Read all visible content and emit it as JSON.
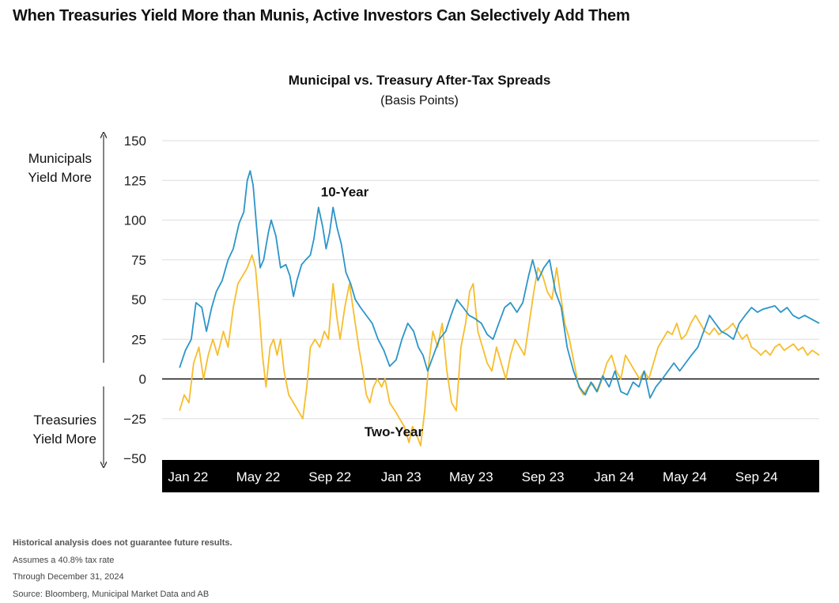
{
  "headline": "When Treasuries Yield More than Munis, Active Investors Can Selectively Add Them",
  "side_labels": {
    "top": "Municipals Yield More",
    "bottom": "Treasuries Yield More"
  },
  "notes": [
    "Historical analysis does not guarantee future results.",
    "Assumes a 40.8% tax rate",
    "Through December 31, 2024",
    "Source: Bloomberg, Municipal Market Data and AB"
  ],
  "colors": {
    "ten_year": "#2b95c9",
    "two_year": "#f7bd2c",
    "axis_band": "#000000",
    "grid": "#dddddd"
  },
  "chart_data": {
    "type": "line",
    "title": "Municipal vs. Treasury After-Tax Spreads",
    "subtitle": "(Basis Points)",
    "x_range": [
      "2021-12",
      "2024-12"
    ],
    "x_ticks": [
      "Jan 22",
      "May 22",
      "Sep 22",
      "Jan 23",
      "May 23",
      "Sep 23",
      "Jan 24",
      "May 24",
      "Sep 24"
    ],
    "y_ticks": [
      "150",
      "125",
      "100",
      "75",
      "50",
      "25",
      "0",
      "−25",
      "−50"
    ],
    "ylim": [
      -50,
      150
    ],
    "grid": true,
    "series": [
      {
        "name": "10-Year",
        "color": "#2b95c9",
        "points": [
          [
            "2021-12-31",
            7
          ],
          [
            "2022-01-10",
            18
          ],
          [
            "2022-01-20",
            25
          ],
          [
            "2022-01-28",
            48
          ],
          [
            "2022-02-07",
            45
          ],
          [
            "2022-02-15",
            30
          ],
          [
            "2022-02-24",
            45
          ],
          [
            "2022-03-04",
            55
          ],
          [
            "2022-03-14",
            62
          ],
          [
            "2022-03-24",
            75
          ],
          [
            "2022-04-02",
            82
          ],
          [
            "2022-04-12",
            98
          ],
          [
            "2022-04-20",
            105
          ],
          [
            "2022-04-26",
            125
          ],
          [
            "2022-05-01",
            131
          ],
          [
            "2022-05-06",
            122
          ],
          [
            "2022-05-12",
            95
          ],
          [
            "2022-05-18",
            70
          ],
          [
            "2022-05-24",
            75
          ],
          [
            "2022-06-01",
            92
          ],
          [
            "2022-06-06",
            100
          ],
          [
            "2022-06-14",
            90
          ],
          [
            "2022-06-22",
            70
          ],
          [
            "2022-07-01",
            72
          ],
          [
            "2022-07-08",
            65
          ],
          [
            "2022-07-14",
            52
          ],
          [
            "2022-07-20",
            62
          ],
          [
            "2022-07-28",
            72
          ],
          [
            "2022-08-04",
            75
          ],
          [
            "2022-08-12",
            78
          ],
          [
            "2022-08-18",
            88
          ],
          [
            "2022-08-26",
            108
          ],
          [
            "2022-09-02",
            96
          ],
          [
            "2022-09-08",
            82
          ],
          [
            "2022-09-14",
            92
          ],
          [
            "2022-09-20",
            108
          ],
          [
            "2022-09-27",
            95
          ],
          [
            "2022-10-04",
            85
          ],
          [
            "2022-10-12",
            67
          ],
          [
            "2022-10-20",
            60
          ],
          [
            "2022-10-28",
            50
          ],
          [
            "2022-11-06",
            45
          ],
          [
            "2022-11-16",
            40
          ],
          [
            "2022-11-26",
            35
          ],
          [
            "2022-12-06",
            25
          ],
          [
            "2022-12-16",
            18
          ],
          [
            "2022-12-26",
            8
          ],
          [
            "2023-01-06",
            12
          ],
          [
            "2023-01-16",
            25
          ],
          [
            "2023-01-26",
            35
          ],
          [
            "2023-02-05",
            30
          ],
          [
            "2023-02-13",
            20
          ],
          [
            "2023-02-21",
            15
          ],
          [
            "2023-03-01",
            5
          ],
          [
            "2023-03-11",
            15
          ],
          [
            "2023-03-21",
            25
          ],
          [
            "2023-04-01",
            30
          ],
          [
            "2023-04-10",
            40
          ],
          [
            "2023-04-20",
            50
          ],
          [
            "2023-05-01",
            45
          ],
          [
            "2023-05-11",
            40
          ],
          [
            "2023-05-21",
            38
          ],
          [
            "2023-06-01",
            35
          ],
          [
            "2023-06-11",
            28
          ],
          [
            "2023-06-21",
            25
          ],
          [
            "2023-07-01",
            35
          ],
          [
            "2023-07-11",
            45
          ],
          [
            "2023-07-21",
            48
          ],
          [
            "2023-08-01",
            42
          ],
          [
            "2023-08-11",
            48
          ],
          [
            "2023-08-21",
            65
          ],
          [
            "2023-08-28",
            75
          ],
          [
            "2023-09-06",
            62
          ],
          [
            "2023-09-16",
            70
          ],
          [
            "2023-09-26",
            75
          ],
          [
            "2023-10-06",
            55
          ],
          [
            "2023-10-16",
            45
          ],
          [
            "2023-10-26",
            20
          ],
          [
            "2023-11-06",
            5
          ],
          [
            "2023-11-16",
            -5
          ],
          [
            "2023-11-26",
            -10
          ],
          [
            "2023-12-06",
            -2
          ],
          [
            "2023-12-16",
            -8
          ],
          [
            "2023-12-26",
            2
          ],
          [
            "2024-01-06",
            -5
          ],
          [
            "2024-01-16",
            5
          ],
          [
            "2024-01-26",
            -8
          ],
          [
            "2024-02-06",
            -10
          ],
          [
            "2024-02-16",
            -2
          ],
          [
            "2024-02-26",
            -5
          ],
          [
            "2024-03-06",
            5
          ],
          [
            "2024-03-16",
            -12
          ],
          [
            "2024-03-26",
            -5
          ],
          [
            "2024-04-06",
            0
          ],
          [
            "2024-04-16",
            5
          ],
          [
            "2024-04-26",
            10
          ],
          [
            "2024-05-06",
            5
          ],
          [
            "2024-05-16",
            10
          ],
          [
            "2024-05-26",
            15
          ],
          [
            "2024-06-06",
            20
          ],
          [
            "2024-06-16",
            30
          ],
          [
            "2024-06-26",
            40
          ],
          [
            "2024-07-06",
            35
          ],
          [
            "2024-07-16",
            30
          ],
          [
            "2024-07-26",
            28
          ],
          [
            "2024-08-06",
            25
          ],
          [
            "2024-08-16",
            35
          ],
          [
            "2024-08-26",
            40
          ],
          [
            "2024-09-06",
            45
          ],
          [
            "2024-09-16",
            42
          ],
          [
            "2024-09-26",
            44
          ],
          [
            "2024-10-06",
            45
          ],
          [
            "2024-10-16",
            46
          ],
          [
            "2024-10-26",
            42
          ],
          [
            "2024-11-06",
            45
          ],
          [
            "2024-11-16",
            40
          ],
          [
            "2024-11-26",
            38
          ],
          [
            "2024-12-06",
            40
          ],
          [
            "2024-12-16",
            38
          ],
          [
            "2024-12-31",
            35
          ]
        ]
      },
      {
        "name": "Two-Year",
        "color": "#f7bd2c",
        "points": [
          [
            "2021-12-31",
            -20
          ],
          [
            "2022-01-08",
            -10
          ],
          [
            "2022-01-16",
            -15
          ],
          [
            "2022-01-24",
            10
          ],
          [
            "2022-02-02",
            20
          ],
          [
            "2022-02-10",
            0
          ],
          [
            "2022-02-18",
            15
          ],
          [
            "2022-02-26",
            25
          ],
          [
            "2022-03-06",
            15
          ],
          [
            "2022-03-16",
            30
          ],
          [
            "2022-03-24",
            20
          ],
          [
            "2022-04-02",
            45
          ],
          [
            "2022-04-10",
            60
          ],
          [
            "2022-04-18",
            65
          ],
          [
            "2022-04-26",
            70
          ],
          [
            "2022-05-04",
            78
          ],
          [
            "2022-05-10",
            70
          ],
          [
            "2022-05-16",
            45
          ],
          [
            "2022-05-22",
            15
          ],
          [
            "2022-05-28",
            -5
          ],
          [
            "2022-06-04",
            20
          ],
          [
            "2022-06-10",
            25
          ],
          [
            "2022-06-16",
            15
          ],
          [
            "2022-06-22",
            25
          ],
          [
            "2022-06-28",
            5
          ],
          [
            "2022-07-06",
            -10
          ],
          [
            "2022-07-14",
            -15
          ],
          [
            "2022-07-22",
            -20
          ],
          [
            "2022-07-30",
            -25
          ],
          [
            "2022-08-06",
            -5
          ],
          [
            "2022-08-12",
            20
          ],
          [
            "2022-08-20",
            25
          ],
          [
            "2022-08-28",
            20
          ],
          [
            "2022-09-05",
            30
          ],
          [
            "2022-09-12",
            25
          ],
          [
            "2022-09-20",
            60
          ],
          [
            "2022-09-26",
            40
          ],
          [
            "2022-10-02",
            25
          ],
          [
            "2022-10-10",
            45
          ],
          [
            "2022-10-18",
            60
          ],
          [
            "2022-10-26",
            40
          ],
          [
            "2022-11-03",
            20
          ],
          [
            "2022-11-10",
            5
          ],
          [
            "2022-11-16",
            -10
          ],
          [
            "2022-11-22",
            -15
          ],
          [
            "2022-11-28",
            -5
          ],
          [
            "2022-12-05",
            0
          ],
          [
            "2022-12-12",
            -5
          ],
          [
            "2022-12-18",
            0
          ],
          [
            "2022-12-26",
            -15
          ],
          [
            "2023-01-04",
            -20
          ],
          [
            "2023-01-12",
            -25
          ],
          [
            "2023-01-20",
            -30
          ],
          [
            "2023-01-28",
            -40
          ],
          [
            "2023-02-03",
            -30
          ],
          [
            "2023-02-10",
            -35
          ],
          [
            "2023-02-17",
            -42
          ],
          [
            "2023-02-24",
            -20
          ],
          [
            "2023-03-03",
            10
          ],
          [
            "2023-03-10",
            30
          ],
          [
            "2023-03-18",
            20
          ],
          [
            "2023-03-26",
            35
          ],
          [
            "2023-04-03",
            5
          ],
          [
            "2023-04-11",
            -15
          ],
          [
            "2023-04-19",
            -20
          ],
          [
            "2023-04-27",
            20
          ],
          [
            "2023-05-05",
            35
          ],
          [
            "2023-05-12",
            55
          ],
          [
            "2023-05-18",
            60
          ],
          [
            "2023-05-26",
            30
          ],
          [
            "2023-06-03",
            20
          ],
          [
            "2023-06-11",
            10
          ],
          [
            "2023-06-19",
            5
          ],
          [
            "2023-06-27",
            20
          ],
          [
            "2023-07-05",
            10
          ],
          [
            "2023-07-13",
            0
          ],
          [
            "2023-07-21",
            15
          ],
          [
            "2023-07-29",
            25
          ],
          [
            "2023-08-06",
            20
          ],
          [
            "2023-08-14",
            15
          ],
          [
            "2023-08-22",
            35
          ],
          [
            "2023-08-30",
            55
          ],
          [
            "2023-09-06",
            70
          ],
          [
            "2023-09-14",
            65
          ],
          [
            "2023-09-22",
            55
          ],
          [
            "2023-09-30",
            50
          ],
          [
            "2023-10-08",
            70
          ],
          [
            "2023-10-14",
            55
          ],
          [
            "2023-10-22",
            35
          ],
          [
            "2023-10-30",
            25
          ],
          [
            "2023-11-07",
            10
          ],
          [
            "2023-11-15",
            -5
          ],
          [
            "2023-11-23",
            -10
          ],
          [
            "2023-12-01",
            -5
          ],
          [
            "2023-12-09",
            -3
          ],
          [
            "2023-12-17",
            -8
          ],
          [
            "2023-12-25",
            0
          ],
          [
            "2024-01-02",
            10
          ],
          [
            "2024-01-10",
            15
          ],
          [
            "2024-01-18",
            5
          ],
          [
            "2024-01-26",
            0
          ],
          [
            "2024-02-03",
            15
          ],
          [
            "2024-02-11",
            10
          ],
          [
            "2024-02-19",
            5
          ],
          [
            "2024-02-27",
            0
          ],
          [
            "2024-03-06",
            5
          ],
          [
            "2024-03-14",
            0
          ],
          [
            "2024-03-22",
            10
          ],
          [
            "2024-03-30",
            20
          ],
          [
            "2024-04-07",
            25
          ],
          [
            "2024-04-15",
            30
          ],
          [
            "2024-04-23",
            28
          ],
          [
            "2024-05-01",
            35
          ],
          [
            "2024-05-09",
            25
          ],
          [
            "2024-05-17",
            28
          ],
          [
            "2024-05-25",
            35
          ],
          [
            "2024-06-02",
            40
          ],
          [
            "2024-06-10",
            35
          ],
          [
            "2024-06-18",
            30
          ],
          [
            "2024-06-26",
            28
          ],
          [
            "2024-07-04",
            32
          ],
          [
            "2024-07-12",
            28
          ],
          [
            "2024-07-20",
            30
          ],
          [
            "2024-07-28",
            32
          ],
          [
            "2024-08-05",
            35
          ],
          [
            "2024-08-13",
            30
          ],
          [
            "2024-08-21",
            25
          ],
          [
            "2024-08-29",
            28
          ],
          [
            "2024-09-06",
            20
          ],
          [
            "2024-09-14",
            18
          ],
          [
            "2024-09-22",
            15
          ],
          [
            "2024-09-30",
            18
          ],
          [
            "2024-10-08",
            15
          ],
          [
            "2024-10-16",
            20
          ],
          [
            "2024-10-24",
            22
          ],
          [
            "2024-11-01",
            18
          ],
          [
            "2024-11-09",
            20
          ],
          [
            "2024-11-17",
            22
          ],
          [
            "2024-11-25",
            18
          ],
          [
            "2024-12-03",
            20
          ],
          [
            "2024-12-11",
            15
          ],
          [
            "2024-12-19",
            18
          ],
          [
            "2024-12-31",
            15
          ]
        ]
      }
    ],
    "annotations": [
      {
        "text": "10-Year",
        "series": "10-Year",
        "date": "2022-10-10",
        "y": 115
      },
      {
        "text": "Two-Year",
        "series": "Two-Year",
        "date": "2023-01-02",
        "y": -36
      }
    ]
  }
}
